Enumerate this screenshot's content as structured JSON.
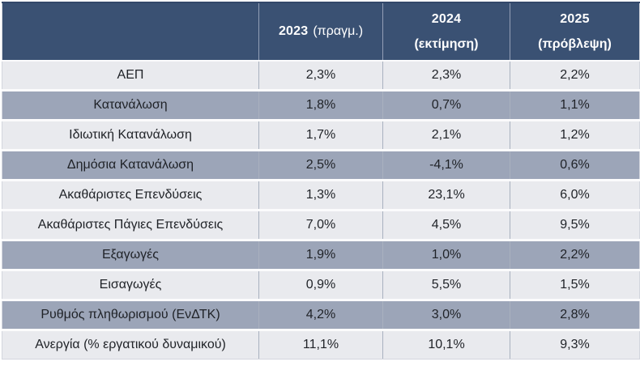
{
  "table": {
    "header": {
      "corner_label": "",
      "columns": [
        {
          "year": "2023",
          "qualifier": "(πραγμ.)"
        },
        {
          "year": "2024",
          "qualifier": "(εκτίμηση)"
        },
        {
          "year": "2025",
          "qualifier": "(πρόβλεψη)"
        }
      ]
    },
    "rows": [
      {
        "label": "ΑΕΠ",
        "shade": "light",
        "values": [
          "2,3%",
          "2,3%",
          "2,2%"
        ]
      },
      {
        "label": "Κατανάλωση",
        "shade": "dark",
        "values": [
          "1,8%",
          "0,7%",
          "1,1%"
        ]
      },
      {
        "label": "Ιδιωτική Κατανάλωση",
        "shade": "light",
        "values": [
          "1,7%",
          "2,1%",
          "1,2%"
        ]
      },
      {
        "label": "Δημόσια Κατανάλωση",
        "shade": "dark",
        "values": [
          "2,5%",
          "-4,1%",
          "0,6%"
        ]
      },
      {
        "label": "Ακαθάριστες Επενδύσεις",
        "shade": "light",
        "values": [
          "1,3%",
          "23,1%",
          "6,0%"
        ]
      },
      {
        "label": "Ακαθάριστες Πάγιες Επενδύσεις",
        "shade": "light",
        "values": [
          "7,0%",
          "4,5%",
          "9,5%"
        ]
      },
      {
        "label": "Εξαγωγές",
        "shade": "dark",
        "values": [
          "1,9%",
          "1,0%",
          "2,2%"
        ]
      },
      {
        "label": "Εισαγωγές",
        "shade": "light",
        "values": [
          "0,9%",
          "5,5%",
          "1,5%"
        ]
      },
      {
        "label": "Ρυθμός πληθωρισμού (ΕνΔΤΚ)",
        "shade": "dark",
        "values": [
          "4,2%",
          "3,0%",
          "2,8%"
        ]
      },
      {
        "label": "Ανεργία (% εργατικού δυναμικού)",
        "shade": "light",
        "values": [
          "11,1%",
          "10,1%",
          "9,3%"
        ]
      }
    ]
  },
  "colors": {
    "header_bg": "#3A5173",
    "header_text": "#FFFFFF",
    "row_light_bg": "#E9EAEE",
    "row_dark_bg": "#9CA5B8",
    "body_text": "#1F2227",
    "grid_line": "#A9B1BF"
  },
  "chart_data": {
    "type": "table",
    "title": "",
    "unit": "%",
    "columns": [
      "",
      "2023 (πραγμ.)",
      "2024 (εκτίμηση)",
      "2025 (πρόβλεψη)"
    ],
    "rows": [
      {
        "label": "ΑΕΠ",
        "values": [
          2.3,
          2.3,
          2.2
        ]
      },
      {
        "label": "Κατανάλωση",
        "values": [
          1.8,
          0.7,
          1.1
        ]
      },
      {
        "label": "Ιδιωτική Κατανάλωση",
        "values": [
          1.7,
          2.1,
          1.2
        ]
      },
      {
        "label": "Δημόσια Κατανάλωση",
        "values": [
          2.5,
          -4.1,
          0.6
        ]
      },
      {
        "label": "Ακαθάριστες Επενδύσεις",
        "values": [
          1.3,
          23.1,
          6.0
        ]
      },
      {
        "label": "Ακαθάριστες Πάγιες Επενδύσεις",
        "values": [
          7.0,
          4.5,
          9.5
        ]
      },
      {
        "label": "Εξαγωγές",
        "values": [
          1.9,
          1.0,
          2.2
        ]
      },
      {
        "label": "Εισαγωγές",
        "values": [
          0.9,
          5.5,
          1.5
        ]
      },
      {
        "label": "Ρυθμός πληθωρισμού (ΕνΔΤΚ)",
        "values": [
          4.2,
          3.0,
          2.8
        ]
      },
      {
        "label": "Ανεργία (% εργατικού δυναμικού)",
        "values": [
          11.1,
          10.1,
          9.3
        ]
      }
    ]
  }
}
